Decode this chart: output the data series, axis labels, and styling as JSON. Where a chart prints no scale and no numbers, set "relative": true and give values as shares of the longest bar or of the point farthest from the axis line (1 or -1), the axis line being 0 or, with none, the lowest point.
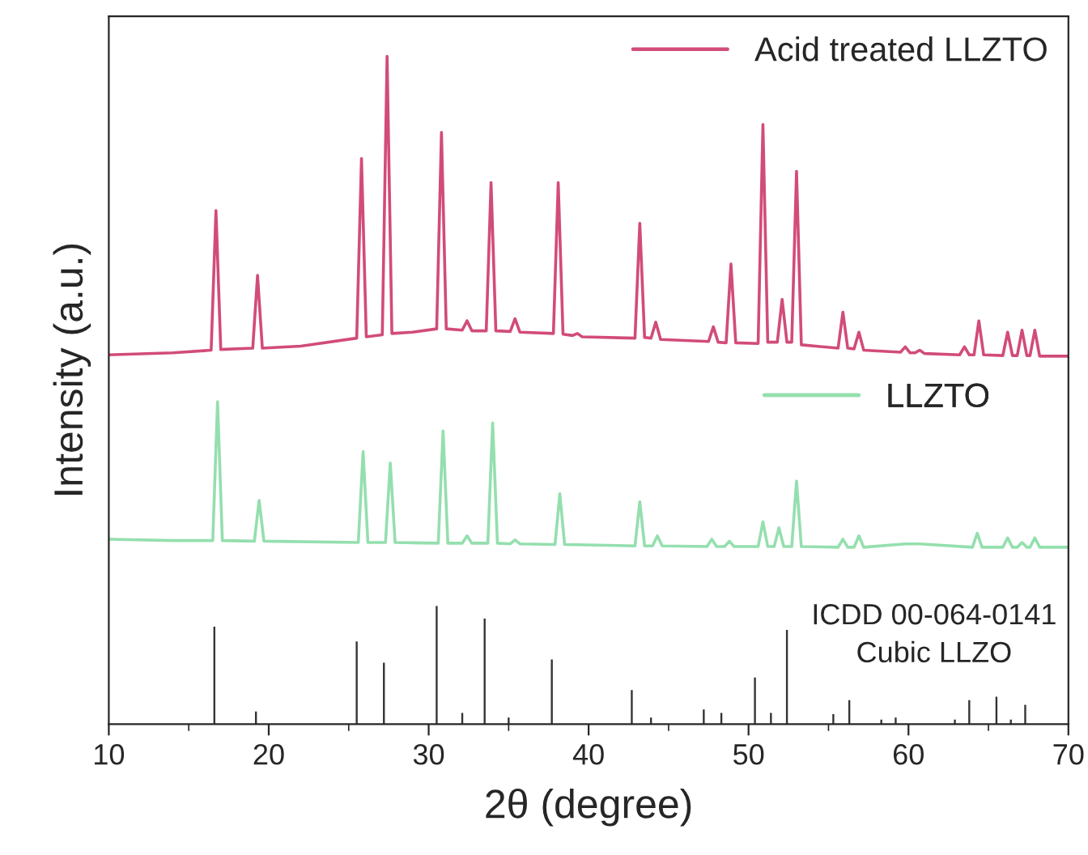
{
  "chart_data": {
    "type": "line",
    "relative": true,
    "xlabel": "2θ (degree)",
    "ylabel": "Intensity (a.u.)",
    "xlim": [
      10,
      70
    ],
    "xticks": [
      10,
      20,
      30,
      40,
      50,
      60,
      70
    ],
    "grid": false,
    "legend": "top right",
    "tick_labels": "x",
    "annotations": [
      "ICDD 00-064-0141\nCubic LLZO"
    ],
    "series": [
      {
        "name": "Acid treated LLZTO",
        "color": "#d24c78",
        "x": [
          10,
          14,
          16.4,
          16.7,
          17.0,
          19.0,
          19.3,
          19.6,
          22,
          25.5,
          25.8,
          26.1,
          27.1,
          27.4,
          27.7,
          29,
          30.5,
          30.8,
          31.1,
          32.1,
          32.4,
          32.7,
          33.6,
          33.9,
          34.2,
          35.1,
          35.4,
          35.7,
          37.8,
          38.1,
          38.4,
          39.0,
          39.3,
          39.6,
          42.9,
          43.2,
          43.5,
          43.9,
          44.2,
          44.5,
          47.5,
          47.8,
          48.1,
          48.6,
          48.9,
          49.2,
          50.6,
          50.9,
          51.2,
          51.8,
          52.1,
          52.4,
          52.7,
          53.0,
          53.3,
          55.6,
          55.9,
          56.2,
          56.6,
          56.9,
          57.2,
          59.5,
          59.8,
          60.1,
          60.4,
          60.7,
          61.0,
          63.2,
          63.5,
          63.8,
          64.1,
          64.4,
          64.7,
          65.9,
          66.2,
          66.5,
          66.8,
          67.1,
          67.4,
          67.6,
          67.9,
          68.2,
          70
        ],
        "values": [
          0.553,
          0.556,
          0.56,
          0.769,
          0.561,
          0.563,
          0.672,
          0.563,
          0.566,
          0.578,
          0.847,
          0.58,
          0.583,
          1.0,
          0.585,
          0.587,
          0.592,
          0.886,
          0.592,
          0.59,
          0.604,
          0.589,
          0.589,
          0.811,
          0.589,
          0.588,
          0.607,
          0.587,
          0.585,
          0.811,
          0.584,
          0.582,
          0.585,
          0.58,
          0.578,
          0.75,
          0.579,
          0.578,
          0.602,
          0.576,
          0.573,
          0.595,
          0.572,
          0.571,
          0.689,
          0.571,
          0.57,
          0.898,
          0.572,
          0.572,
          0.636,
          0.572,
          0.572,
          0.828,
          0.568,
          0.563,
          0.617,
          0.563,
          0.562,
          0.587,
          0.56,
          0.557,
          0.565,
          0.556,
          0.556,
          0.56,
          0.555,
          0.553,
          0.565,
          0.553,
          0.553,
          0.604,
          0.553,
          0.552,
          0.587,
          0.552,
          0.552,
          0.59,
          0.552,
          0.552,
          0.59,
          0.551,
          0.551
        ]
      },
      {
        "name": "LLZTO",
        "color": "#94dfae",
        "x": [
          10,
          14,
          16.5,
          16.8,
          17.1,
          19.1,
          19.4,
          19.7,
          25.6,
          25.9,
          26.2,
          27.3,
          27.6,
          27.9,
          30.6,
          30.9,
          31.2,
          32.1,
          32.4,
          32.7,
          33.7,
          34.0,
          34.3,
          35.1,
          35.4,
          35.7,
          37.9,
          38.2,
          38.5,
          42.9,
          43.2,
          43.5,
          44.0,
          44.3,
          44.6,
          47.4,
          47.7,
          48.0,
          48.5,
          48.8,
          49.1,
          50.6,
          50.9,
          51.2,
          51.6,
          51.9,
          52.2,
          52.7,
          53.0,
          53.3,
          55.6,
          55.9,
          56.2,
          56.6,
          56.9,
          57.2,
          59.8,
          60.7,
          64.0,
          64.3,
          64.6,
          65.9,
          66.2,
          66.5,
          66.8,
          67.1,
          67.4,
          67.6,
          67.9,
          68.2,
          70
        ],
        "values": [
          0.277,
          0.275,
          0.275,
          0.483,
          0.275,
          0.274,
          0.335,
          0.274,
          0.272,
          0.408,
          0.272,
          0.272,
          0.391,
          0.272,
          0.271,
          0.439,
          0.271,
          0.271,
          0.282,
          0.271,
          0.271,
          0.451,
          0.271,
          0.27,
          0.276,
          0.27,
          0.269,
          0.345,
          0.269,
          0.267,
          0.333,
          0.267,
          0.267,
          0.282,
          0.267,
          0.266,
          0.277,
          0.266,
          0.266,
          0.274,
          0.266,
          0.266,
          0.303,
          0.266,
          0.266,
          0.294,
          0.266,
          0.266,
          0.364,
          0.266,
          0.265,
          0.277,
          0.265,
          0.265,
          0.282,
          0.265,
          0.27,
          0.27,
          0.265,
          0.286,
          0.265,
          0.265,
          0.279,
          0.265,
          0.265,
          0.272,
          0.265,
          0.265,
          0.279,
          0.265,
          0.265
        ]
      },
      {
        "color": "#333333",
        "type": "bar",
        "x": [
          16.6,
          19.2,
          25.5,
          27.2,
          30.5,
          32.1,
          33.5,
          35.0,
          37.7,
          42.7,
          43.9,
          47.2,
          48.3,
          50.4,
          51.4,
          52.4,
          55.3,
          56.3,
          58.3,
          59.2,
          62.9,
          63.8,
          65.5,
          66.4,
          67.3
        ],
        "values": [
          0.146,
          0.019,
          0.124,
          0.092,
          0.177,
          0.017,
          0.158,
          0.01,
          0.097,
          0.051,
          0.01,
          0.022,
          0.017,
          0.07,
          0.017,
          0.141,
          0.015,
          0.036,
          0.007,
          0.01,
          0.007,
          0.036,
          0.041,
          0.007,
          0.029
        ]
      }
    ]
  }
}
